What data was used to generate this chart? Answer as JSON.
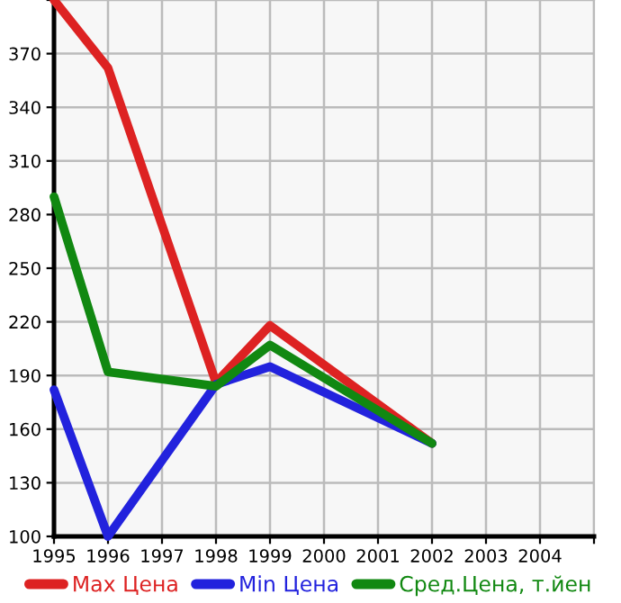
{
  "chart_data": {
    "type": "line",
    "x": [
      1995,
      1996,
      1998,
      1999,
      2002
    ],
    "series": [
      {
        "name": "Max Цена",
        "color": "#dd2222",
        "values": [
          400,
          362,
          186,
          218,
          152
        ]
      },
      {
        "name": "Min Цена",
        "color": "#2222dd",
        "values": [
          182,
          100,
          185,
          195,
          152
        ]
      },
      {
        "name": "Сред.Цена, т.йен",
        "color": "#118811",
        "values": [
          290,
          192,
          184,
          207,
          152
        ]
      }
    ],
    "xlim": [
      1995,
      2005
    ],
    "xticks": [
      1995,
      1996,
      1997,
      1998,
      1999,
      2000,
      2001,
      2002,
      2003,
      2004,
      {
        "value": 2005,
        "label": null
      }
    ],
    "ylim": [
      100,
      400
    ],
    "yticks": [
      100,
      130,
      160,
      190,
      220,
      250,
      280,
      310,
      340,
      370,
      {
        "value": 400,
        "label": null
      }
    ],
    "grid": true,
    "legend": "bottom",
    "marker": "none",
    "line_style": "solid"
  }
}
